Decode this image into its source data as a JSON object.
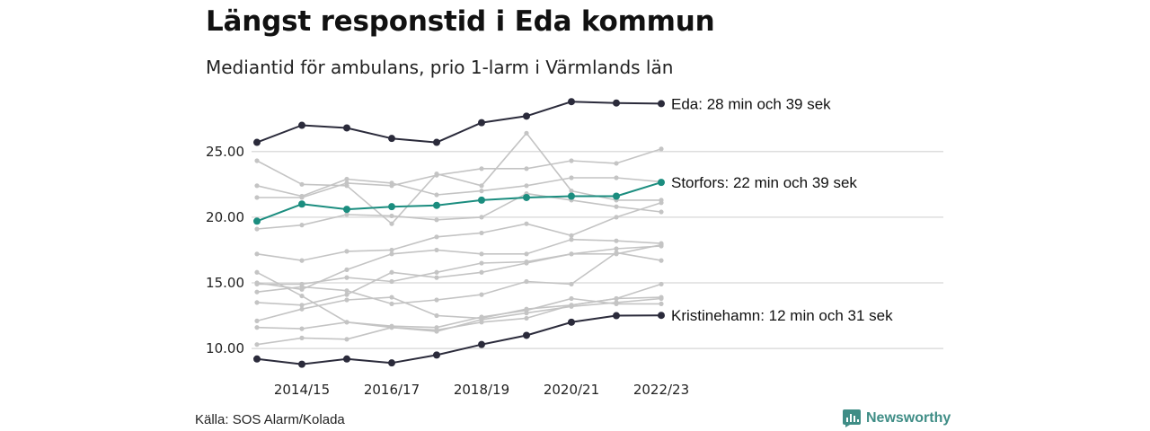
{
  "header": {
    "title": "Längst responstid i Eda kommun",
    "subtitle": "Mediantid för ambulans, prio 1-larm i Värmlands län"
  },
  "footer": {
    "source": "Källa: SOS Alarm/Kolada",
    "brand": "Newsworthy",
    "brand_icon": "newsworthy-logo-icon"
  },
  "colors": {
    "highlight_dark": "#2b2b3b",
    "highlight_teal": "#1b8d7f",
    "background_series": "#c4c4c4",
    "grid": "#dddddd",
    "brand": "#3f8d86"
  },
  "chart_data": {
    "type": "line",
    "x": [
      "2013/14",
      "2014/15",
      "2015/16",
      "2016/17",
      "2017/18",
      "2018/19",
      "2019/20",
      "2020/21",
      "2021/22",
      "2022/23"
    ],
    "xticks": [
      "2014/15",
      "2016/17",
      "2018/19",
      "2020/21",
      "2022/23"
    ],
    "yticks": [
      "10.00",
      "15.00",
      "20.00",
      "25.00"
    ],
    "ylim": [
      8.5,
      29.5
    ],
    "grid": "horizontal",
    "highlighted": [
      {
        "label": "Eda: 28 min och 39 sek",
        "color": "#2b2b3b",
        "values": [
          25.7,
          27.0,
          26.8,
          26.0,
          25.7,
          27.2,
          27.7,
          28.8,
          28.7,
          28.65
        ]
      },
      {
        "label": "Storfors: 22 min och 39 sek",
        "color": "#1b8d7f",
        "values": [
          19.7,
          21.0,
          20.6,
          20.8,
          20.9,
          21.3,
          21.5,
          21.6,
          21.6,
          22.65
        ]
      },
      {
        "label": "Kristinehamn: 12 min och 31 sek",
        "color": "#2b2b3b",
        "values": [
          9.2,
          8.8,
          9.2,
          8.9,
          9.5,
          10.3,
          11.0,
          12.0,
          12.5,
          12.52
        ]
      }
    ],
    "background_series": [
      {
        "values": [
          24.3,
          22.5,
          22.4,
          19.5,
          23.3,
          22.4,
          26.4,
          22.0,
          21.3,
          21.3
        ]
      },
      {
        "values": [
          22.4,
          21.6,
          22.9,
          22.6,
          21.7,
          22.0,
          22.4,
          23.0,
          23.0,
          22.7
        ]
      },
      {
        "values": [
          21.5,
          21.5,
          22.6,
          22.4,
          23.2,
          23.7,
          23.7,
          24.3,
          24.1,
          25.2
        ]
      },
      {
        "values": [
          19.1,
          19.4,
          20.2,
          20.1,
          19.8,
          20.0,
          21.8,
          21.3,
          20.8,
          20.4
        ]
      },
      {
        "values": [
          17.2,
          16.7,
          17.4,
          17.5,
          18.5,
          18.8,
          19.5,
          18.6,
          20.0,
          21.1
        ]
      },
      {
        "values": [
          15.0,
          14.5,
          16.0,
          17.2,
          17.5,
          17.2,
          17.2,
          18.3,
          18.2,
          18.0
        ]
      },
      {
        "values": [
          14.3,
          14.7,
          14.4,
          13.4,
          13.7,
          14.1,
          15.1,
          14.9,
          17.3,
          16.7
        ]
      },
      {
        "values": [
          13.5,
          13.3,
          14.1,
          15.8,
          15.4,
          15.8,
          16.5,
          17.2,
          17.2,
          17.9
        ]
      },
      {
        "values": [
          12.1,
          13.0,
          13.7,
          13.9,
          12.5,
          12.3,
          13.0,
          13.3,
          13.8,
          13.9
        ]
      },
      {
        "values": [
          11.6,
          11.5,
          12.0,
          11.7,
          11.6,
          12.4,
          12.9,
          13.8,
          13.4,
          13.4
        ]
      },
      {
        "values": [
          15.8,
          14.0,
          12.0,
          11.6,
          11.4,
          12.0,
          12.3,
          13.3,
          13.8,
          14.9
        ]
      },
      {
        "values": [
          10.3,
          10.8,
          10.7,
          11.6,
          11.3,
          12.2,
          12.7,
          13.2,
          13.5,
          13.8
        ]
      },
      {
        "values": [
          14.9,
          14.9,
          15.4,
          15.1,
          15.8,
          16.5,
          16.6,
          17.2,
          17.6,
          17.8
        ]
      }
    ]
  }
}
